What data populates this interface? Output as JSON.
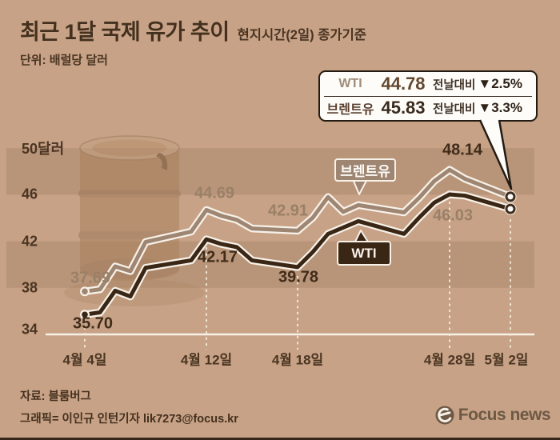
{
  "header": {
    "title": "최근 1달 국제 유가 추이",
    "subtitle": "현지시간(2일) 종가기준",
    "unit_label": "단위: 배럴당 달러"
  },
  "callout": {
    "rows": [
      {
        "name": "WTI",
        "value": "44.78",
        "compare_label": "전날대비",
        "change": "▼2.5%"
      },
      {
        "name": "브렌트유",
        "value": "45.83",
        "compare_label": "전날대비",
        "change": "▼3.3%"
      }
    ]
  },
  "footer": {
    "source": "자료: 블룸버그",
    "credit": "그래픽= 이인규 인턴기자 lik7273@focus.kr",
    "logo_text": "Focus news"
  },
  "colors": {
    "background": "#c7a286",
    "band": "#b89478",
    "wti_line": "#3a2615",
    "brent_line": "#9e8673",
    "line_casing": "#f7f1e8",
    "dark_text": "#402c19",
    "muted_text": "#9a8068",
    "callout_border": "#241b12",
    "logo": "#6d5945"
  },
  "chart_data": {
    "type": "line",
    "title": "최근 1달 국제 유가 추이",
    "unit": "배럴당 달러",
    "ylim": [
      34,
      50
    ],
    "grid": "horizontal-bands",
    "band_ranges": [
      [
        46,
        50
      ],
      [
        38,
        42
      ]
    ],
    "yticks": [
      {
        "label": "50달러",
        "value": 50
      },
      {
        "label": "46",
        "value": 46
      },
      {
        "label": "42",
        "value": 42
      },
      {
        "label": "38",
        "value": 38
      },
      {
        "label": "34",
        "value": 34
      }
    ],
    "x_ticks": [
      {
        "label": "4월 4일",
        "day": 0
      },
      {
        "label": "4월 12일",
        "day": 8
      },
      {
        "label": "4월 18일",
        "day": 14
      },
      {
        "label": "4월 28일",
        "day": 24
      },
      {
        "label": "5월 2일",
        "day": 28
      }
    ],
    "day_offsets": [
      0,
      1,
      2,
      3,
      4,
      7,
      8,
      9,
      10,
      11,
      14,
      15,
      16,
      17,
      18,
      21,
      22,
      23,
      24,
      25,
      28
    ],
    "series": [
      {
        "name": "브렌트유",
        "color": "#9e8673",
        "values": [
          37.69,
          37.87,
          39.84,
          39.43,
          41.94,
          42.83,
          44.69,
          44.18,
          43.84,
          43.1,
          42.91,
          44.03,
          45.8,
          44.53,
          45.11,
          44.48,
          45.74,
          47.18,
          48.14,
          47.37,
          45.83
        ]
      },
      {
        "name": "WTI",
        "color": "#3a2615",
        "values": [
          35.7,
          35.89,
          37.75,
          37.26,
          39.72,
          40.36,
          42.17,
          41.76,
          41.5,
          40.36,
          39.78,
          41.08,
          42.63,
          43.18,
          43.73,
          42.64,
          44.04,
          45.33,
          46.03,
          45.92,
          44.78
        ]
      }
    ],
    "point_labels": [
      {
        "series": "브렌트유",
        "day": 0,
        "text": "37.69",
        "emphasis": "muted"
      },
      {
        "series": "WTI",
        "day": 0,
        "text": "35.70",
        "emphasis": "dark"
      },
      {
        "series": "브렌트유",
        "day": 8,
        "text": "44.69",
        "emphasis": "muted"
      },
      {
        "series": "WTI",
        "day": 8,
        "text": "42.17",
        "emphasis": "dark"
      },
      {
        "series": "브렌트유",
        "day": 14,
        "text": "42.91",
        "emphasis": "muted"
      },
      {
        "series": "WTI",
        "day": 14,
        "text": "39.78",
        "emphasis": "dark"
      },
      {
        "series": "브렌트유",
        "day": 24,
        "text": "48.14",
        "emphasis": "dark"
      },
      {
        "series": "WTI",
        "day": 24,
        "text": "46.03",
        "emphasis": "muted"
      }
    ],
    "end_values": {
      "WTI": 44.78,
      "브렌트유": 45.83
    }
  }
}
